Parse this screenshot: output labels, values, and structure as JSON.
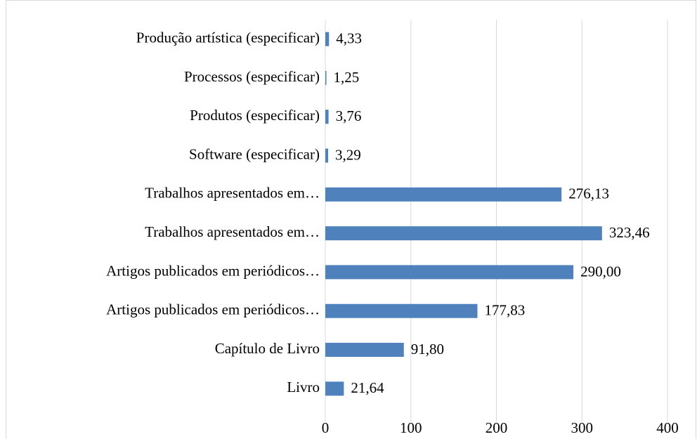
{
  "chart_data": {
    "type": "bar",
    "orientation": "horizontal",
    "categories": [
      "Produção artística (especificar)",
      "Processos (especificar)",
      "Produtos (especificar)",
      "Software (especificar)",
      "Trabalhos apresentados em…",
      "Trabalhos apresentados em…",
      "Artigos publicados em periódicos…",
      "Artigos publicados em periódicos…",
      "Capítulo de Livro",
      "Livro"
    ],
    "values": [
      4.33,
      1.25,
      3.76,
      3.29,
      276.13,
      323.46,
      290.0,
      177.83,
      91.8,
      21.64
    ],
    "value_labels": [
      "4,33",
      "1,25",
      "3,76",
      "3,29",
      "276,13",
      "323,46",
      "290,00",
      "177,83",
      "91,80",
      "21,64"
    ],
    "color": "#4f81bd",
    "xlim": [
      0,
      400
    ],
    "xticks": [
      0,
      100,
      200,
      300,
      400
    ],
    "grid": true
  }
}
